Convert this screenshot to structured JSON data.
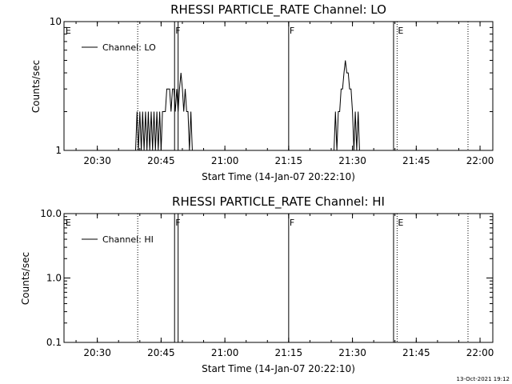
{
  "chart_data": [
    {
      "type": "line",
      "title": "RHESSI PARTICLE_RATE Channel: LO",
      "xlabel": "Start Time (14-Jan-07 20:22:10)",
      "ylabel": "Counts/sec",
      "yscale": "log",
      "ylim": [
        1,
        10
      ],
      "yticks": [
        "1",
        "10"
      ],
      "xlim": [
        "20:22:10",
        "22:03:00"
      ],
      "xticks": [
        "20:30",
        "20:45",
        "21:00",
        "21:15",
        "21:30",
        "21:45",
        "22:00"
      ],
      "legend": {
        "label": "Channel: LO",
        "placement": "top-left"
      },
      "markers": [
        {
          "label": "E",
          "time": "20:22:20",
          "line": "none"
        },
        {
          "label": "",
          "time": "20:39:30",
          "line": "dotted"
        },
        {
          "label": "F",
          "time": "20:48:10",
          "line": "solid"
        },
        {
          "label": "",
          "time": "20:49:00",
          "line": "solid"
        },
        {
          "label": "F",
          "time": "21:15:00",
          "line": "solid"
        },
        {
          "label": "",
          "time": "21:39:40",
          "line": "solid"
        },
        {
          "label": "E",
          "time": "21:40:30",
          "line": "dotted"
        },
        {
          "label": "",
          "time": "21:57:10",
          "line": "dotted"
        }
      ],
      "series": [
        {
          "points": [
            [
              "20:39:00",
              1
            ],
            [
              "20:39:20",
              2
            ],
            [
              "20:39:40",
              1
            ],
            [
              "20:40:00",
              2
            ],
            [
              "20:40:20",
              1
            ],
            [
              "20:40:40",
              2
            ],
            [
              "20:41:00",
              1
            ],
            [
              "20:41:20",
              2
            ],
            [
              "20:41:40",
              1
            ],
            [
              "20:42:00",
              2
            ],
            [
              "20:42:20",
              1
            ],
            [
              "20:42:40",
              2
            ],
            [
              "20:43:00",
              1
            ],
            [
              "20:43:20",
              2
            ],
            [
              "20:43:40",
              1
            ],
            [
              "20:44:00",
              2
            ],
            [
              "20:44:20",
              1
            ],
            [
              "20:44:40",
              2
            ],
            [
              "20:45:00",
              1
            ],
            [
              "20:45:20",
              2
            ],
            [
              "20:45:40",
              2
            ],
            [
              "20:46:00",
              2
            ],
            [
              "20:46:20",
              3
            ],
            [
              "20:46:40",
              3
            ],
            [
              "20:47:00",
              3
            ],
            [
              "20:47:20",
              2
            ],
            [
              "20:47:40",
              3
            ],
            [
              "20:48:00",
              3
            ],
            [
              "20:48:20",
              2
            ],
            [
              "20:48:40",
              3
            ],
            [
              "20:49:00",
              2
            ],
            [
              "20:49:20",
              3
            ],
            [
              "20:49:40",
              4
            ],
            [
              "20:50:00",
              3
            ],
            [
              "20:50:20",
              2
            ],
            [
              "20:50:40",
              3
            ],
            [
              "20:51:00",
              2
            ],
            [
              "20:51:20",
              2
            ],
            [
              "20:51:40",
              1
            ],
            [
              "20:52:00",
              2
            ],
            [
              "20:52:20",
              1
            ],
            [
              "20:52:40",
              1
            ],
            [
              "21:25:40",
              1
            ],
            [
              "21:26:00",
              2
            ],
            [
              "21:26:20",
              1
            ],
            [
              "21:26:40",
              2
            ],
            [
              "21:27:00",
              2
            ],
            [
              "21:27:20",
              3
            ],
            [
              "21:27:40",
              3
            ],
            [
              "21:28:00",
              4
            ],
            [
              "21:28:20",
              5
            ],
            [
              "21:28:40",
              4
            ],
            [
              "21:29:00",
              4
            ],
            [
              "21:29:20",
              3
            ],
            [
              "21:29:40",
              3
            ],
            [
              "21:30:00",
              2
            ],
            [
              "21:30:20",
              1
            ],
            [
              "21:30:40",
              2
            ],
            [
              "21:31:00",
              1
            ],
            [
              "21:31:20",
              2
            ],
            [
              "21:31:40",
              1
            ]
          ]
        }
      ]
    },
    {
      "type": "line",
      "title": "RHESSI PARTICLE_RATE Channel: HI",
      "xlabel": "Start Time (14-Jan-07 20:22:10)",
      "ylabel": "Counts/sec",
      "yscale": "log",
      "ylim": [
        0.1,
        10
      ],
      "yticks": [
        "0.1",
        "1.0",
        "10.0"
      ],
      "xlim": [
        "20:22:10",
        "22:03:00"
      ],
      "xticks": [
        "20:30",
        "20:45",
        "21:00",
        "21:15",
        "21:30",
        "21:45",
        "22:00"
      ],
      "legend": {
        "label": "Channel: HI",
        "placement": "top-left"
      },
      "markers": [
        {
          "label": "E",
          "time": "20:22:20",
          "line": "none"
        },
        {
          "label": "",
          "time": "20:39:30",
          "line": "dotted"
        },
        {
          "label": "F",
          "time": "20:48:10",
          "line": "solid"
        },
        {
          "label": "",
          "time": "20:49:00",
          "line": "solid"
        },
        {
          "label": "F",
          "time": "21:15:00",
          "line": "solid"
        },
        {
          "label": "",
          "time": "21:39:40",
          "line": "solid"
        },
        {
          "label": "E",
          "time": "21:40:30",
          "line": "dotted"
        },
        {
          "label": "",
          "time": "21:57:10",
          "line": "dotted"
        }
      ],
      "series": [
        {
          "points": []
        }
      ]
    }
  ],
  "timestamp": "13-Oct-2021 19:12"
}
